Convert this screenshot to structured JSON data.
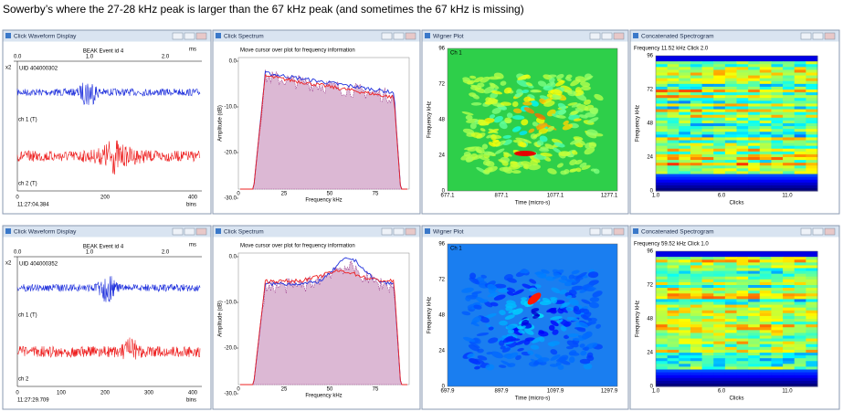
{
  "caption": "Sowerby’s where the 27-28 kHz peak is larger than the 67 kHz peak (and sometimes the 67 kHz is missing)",
  "rows": [
    {
      "waveform": {
        "window_title": "Click Waveform Display",
        "event": "BEAK Event id 4",
        "unit_top": "ms",
        "top_ticks": [
          "0.0",
          "1.0",
          "2.0"
        ],
        "scale": "x2",
        "uid": "UID 404000302",
        "ch1": "ch 1 (T)",
        "ch2": "ch 2 (T)",
        "bottom_ticks": [
          "0",
          "200",
          "400"
        ],
        "unit_bottom": "bins",
        "time": "11:27:04.384"
      },
      "spectrum": {
        "window_title": "Click Spectrum",
        "hint": "Move cursor over plot for frequency information",
        "y_label": "Amplitude (dB)",
        "y_ticks": [
          "0.0",
          "-10.0",
          "-20.0",
          "-30.0"
        ],
        "x_ticks": [
          "0",
          "25",
          "50",
          "75"
        ],
        "x_label": "Frequency kHz"
      },
      "wigner": {
        "window_title": "Wigner Plot",
        "channel": "Ch 1",
        "y_label": "Frequency kHz",
        "y_ticks": [
          "96",
          "72",
          "48",
          "24",
          "0"
        ],
        "x_ticks": [
          "677.1",
          "877.1",
          "1077.1",
          "1277.1"
        ],
        "x_label": "Time (micro-s)"
      },
      "spectrogram": {
        "window_title": "Concatenated Spectrogram",
        "info": "Frequency 11.52 kHz   Click 2.0",
        "y_label": "Frequency kHz",
        "y_ticks": [
          "96",
          "72",
          "48",
          "24",
          "0"
        ],
        "x_ticks": [
          "1.0",
          "6.0",
          "11.0"
        ],
        "x_label": "Clicks"
      }
    },
    {
      "waveform": {
        "window_title": "Click Waveform Display",
        "event": "BEAK Event id 4",
        "unit_top": "ms",
        "top_ticks": [
          "0.0",
          "1.0",
          "2.0"
        ],
        "scale": "x2",
        "uid": "UID 404000352",
        "ch1": "ch 1 (T)",
        "ch2": "ch 2",
        "bottom_ticks": [
          "0",
          "100",
          "200",
          "300",
          "400"
        ],
        "unit_bottom": "bins",
        "time": "11:27:29.709"
      },
      "spectrum": {
        "window_title": "Click Spectrum",
        "hint": "Move cursor over plot for frequency information",
        "y_label": "Amplitude (dB)",
        "y_ticks": [
          "0.0",
          "-10.0",
          "-20.0",
          "-30.0"
        ],
        "x_ticks": [
          "0",
          "25",
          "50",
          "75"
        ],
        "x_label": "Frequency kHz"
      },
      "wigner": {
        "window_title": "Wigner Plot",
        "channel": "Ch 1",
        "y_label": "Frequency kHz",
        "y_ticks": [
          "96",
          "72",
          "48",
          "24",
          "0"
        ],
        "x_ticks": [
          "697.9",
          "897.9",
          "1097.9",
          "1297.9"
        ],
        "x_label": "Time (micro-s)"
      },
      "spectrogram": {
        "window_title": "Concatenated Spectrogram",
        "info": "Frequency 59.52 kHz   Click 1.0",
        "y_label": "Frequency kHz",
        "y_ticks": [
          "96",
          "72",
          "48",
          "24",
          "0"
        ],
        "x_ticks": [
          "1.0",
          "6.0",
          "11.0"
        ],
        "x_label": "Clicks"
      }
    }
  ]
}
